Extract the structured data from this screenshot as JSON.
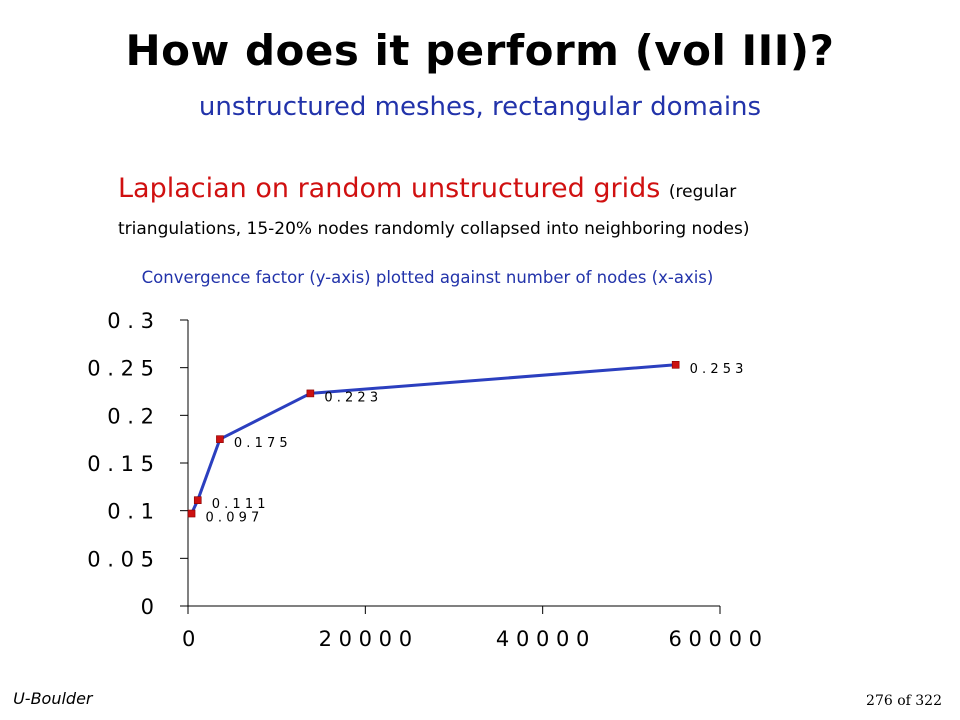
{
  "slide": {
    "title": "How does it perform (vol III)?",
    "subtitle": "unstructured meshes, rectangular domains",
    "heading": "Laplacian on random unstructured grids",
    "heading_note": "(regular",
    "heading_note_line2": "triangulations, 15-20% nodes randomly collapsed into neighboring nodes)",
    "caption": "Convergence factor (y-axis) plotted against number of nodes (x-axis)"
  },
  "footer": {
    "left": " U-Boulder",
    "right": "276 of 322"
  },
  "chart_data": {
    "type": "line",
    "title": "",
    "xlabel": "",
    "ylabel": "",
    "xlim": [
      0,
      60000
    ],
    "ylim": [
      0,
      0.3
    ],
    "x_ticks": [
      0,
      20000,
      40000,
      60000
    ],
    "x_tick_labels": [
      "0",
      "2 0 0 0 0",
      "4 0 0 0 0",
      "6 0 0 0 0"
    ],
    "y_ticks": [
      0,
      0.05,
      0.1,
      0.15,
      0.2,
      0.25,
      0.3
    ],
    "y_tick_labels": [
      "0",
      "0 . 0 5",
      "0 . 1",
      "0 . 1 5",
      "0 . 2",
      "0 . 2 5",
      "0 . 3"
    ],
    "grid": false,
    "series": [
      {
        "x": [
          400,
          1100,
          3600,
          13800,
          55000
        ],
        "y": [
          0.097,
          0.111,
          0.175,
          0.223,
          0.253
        ],
        "labels": [
          "0 . 0 9 7",
          "0 . 1 1 1",
          "0 . 1 7 5",
          "0 . 2 2 3",
          "0 . 2 5 3"
        ],
        "line_color": "#2b3fbf",
        "marker_color": "#cc1111"
      }
    ]
  }
}
